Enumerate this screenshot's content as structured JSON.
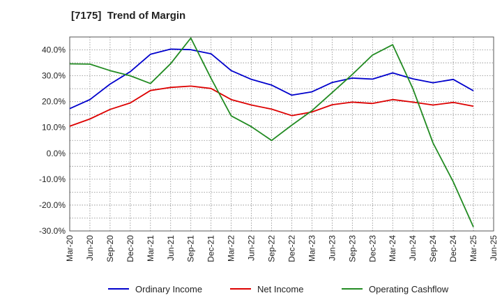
{
  "chart_data": {
    "type": "line",
    "title": "[7175]  Trend of Margin",
    "xlabel": "",
    "ylabel": "",
    "x": [
      "Mar-20",
      "Jun-20",
      "Sep-20",
      "Dec-20",
      "Mar-21",
      "Jun-21",
      "Sep-21",
      "Dec-21",
      "Mar-22",
      "Jun-22",
      "Sep-22",
      "Dec-22",
      "Mar-23",
      "Jun-23",
      "Sep-23",
      "Dec-23",
      "Mar-24",
      "Jun-24",
      "Sep-24",
      "Dec-24",
      "Mar-25",
      "Jun-25"
    ],
    "ylim": [
      -30,
      45
    ],
    "yticks": [
      -30,
      -20,
      -10,
      0,
      10,
      20,
      30,
      40
    ],
    "ytick_labels": [
      "-30.0%",
      "-20.0%",
      "-10.0%",
      "0.0%",
      "10.0%",
      "20.0%",
      "30.0%",
      "40.0%"
    ],
    "grid": true,
    "legend_position": "bottom",
    "series": [
      {
        "name": "Ordinary Income",
        "color": "#0000cc",
        "values": [
          17.3,
          20.8,
          26.8,
          31.6,
          38.3,
          40.3,
          40.1,
          38.5,
          32.0,
          28.6,
          26.4,
          22.5,
          23.8,
          27.4,
          29.1,
          28.7,
          31.1,
          28.8,
          27.3,
          28.6,
          24.2,
          null
        ]
      },
      {
        "name": "Net Income",
        "color": "#dd0000",
        "values": [
          10.5,
          13.3,
          17.0,
          19.5,
          24.3,
          25.5,
          26.0,
          25.1,
          20.8,
          18.7,
          17.1,
          14.6,
          16.0,
          18.8,
          19.8,
          19.3,
          20.8,
          19.8,
          18.7,
          19.7,
          18.2,
          null
        ]
      },
      {
        "name": "Operating Cashflow",
        "color": "#228b22",
        "values": [
          34.6,
          34.5,
          32.0,
          30.0,
          27.0,
          34.7,
          44.6,
          29.0,
          14.5,
          10.3,
          5.0,
          10.9,
          16.5,
          23.5,
          30.5,
          38.0,
          42.0,
          25.0,
          4.0,
          -11.0,
          -28.5,
          null
        ]
      }
    ]
  }
}
